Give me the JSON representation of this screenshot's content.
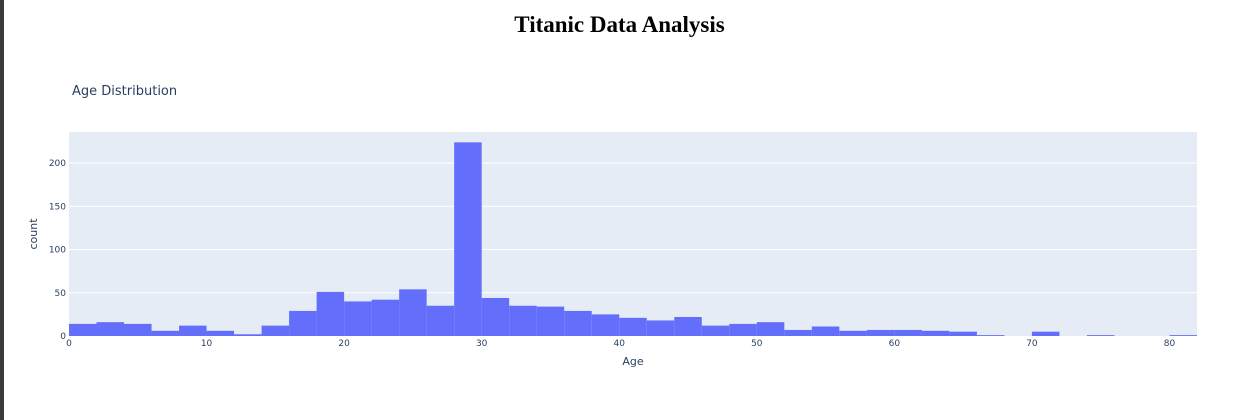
{
  "page": {
    "title": "Titanic Data Analysis"
  },
  "colors": {
    "plot_background": "#e5ecf6",
    "bar": "#636efa",
    "gridline": "#ffffff",
    "text": "#2a3f5f"
  },
  "chart_data": {
    "type": "bar",
    "title": "Age Distribution",
    "xlabel": "Age",
    "ylabel": "count",
    "xlim": [
      0,
      82
    ],
    "ylim": [
      0,
      236
    ],
    "grid": true,
    "bin_width": 2,
    "x_ticks": [
      0,
      10,
      20,
      30,
      40,
      50,
      60,
      70,
      80
    ],
    "y_ticks": [
      0,
      50,
      100,
      150,
      200
    ],
    "bins": [
      {
        "x0": 0,
        "x1": 2,
        "count": 14
      },
      {
        "x0": 2,
        "x1": 4,
        "count": 16
      },
      {
        "x0": 4,
        "x1": 6,
        "count": 14
      },
      {
        "x0": 6,
        "x1": 8,
        "count": 6
      },
      {
        "x0": 8,
        "x1": 10,
        "count": 12
      },
      {
        "x0": 10,
        "x1": 12,
        "count": 6
      },
      {
        "x0": 12,
        "x1": 14,
        "count": 2
      },
      {
        "x0": 14,
        "x1": 16,
        "count": 12
      },
      {
        "x0": 16,
        "x1": 18,
        "count": 29
      },
      {
        "x0": 18,
        "x1": 20,
        "count": 51
      },
      {
        "x0": 20,
        "x1": 22,
        "count": 40
      },
      {
        "x0": 22,
        "x1": 24,
        "count": 42
      },
      {
        "x0": 24,
        "x1": 26,
        "count": 54
      },
      {
        "x0": 26,
        "x1": 28,
        "count": 35
      },
      {
        "x0": 28,
        "x1": 30,
        "count": 224
      },
      {
        "x0": 30,
        "x1": 32,
        "count": 44
      },
      {
        "x0": 32,
        "x1": 34,
        "count": 35
      },
      {
        "x0": 34,
        "x1": 36,
        "count": 34
      },
      {
        "x0": 36,
        "x1": 38,
        "count": 29
      },
      {
        "x0": 38,
        "x1": 40,
        "count": 25
      },
      {
        "x0": 40,
        "x1": 42,
        "count": 21
      },
      {
        "x0": 42,
        "x1": 44,
        "count": 18
      },
      {
        "x0": 44,
        "x1": 46,
        "count": 22
      },
      {
        "x0": 46,
        "x1": 48,
        "count": 12
      },
      {
        "x0": 48,
        "x1": 50,
        "count": 14
      },
      {
        "x0": 50,
        "x1": 52,
        "count": 16
      },
      {
        "x0": 52,
        "x1": 54,
        "count": 7
      },
      {
        "x0": 54,
        "x1": 56,
        "count": 11
      },
      {
        "x0": 56,
        "x1": 58,
        "count": 6
      },
      {
        "x0": 58,
        "x1": 60,
        "count": 7
      },
      {
        "x0": 60,
        "x1": 62,
        "count": 7
      },
      {
        "x0": 62,
        "x1": 64,
        "count": 6
      },
      {
        "x0": 64,
        "x1": 66,
        "count": 5
      },
      {
        "x0": 66,
        "x1": 68,
        "count": 1
      },
      {
        "x0": 70,
        "x1": 72,
        "count": 5
      },
      {
        "x0": 74,
        "x1": 76,
        "count": 1
      },
      {
        "x0": 80,
        "x1": 82,
        "count": 1
      }
    ]
  }
}
